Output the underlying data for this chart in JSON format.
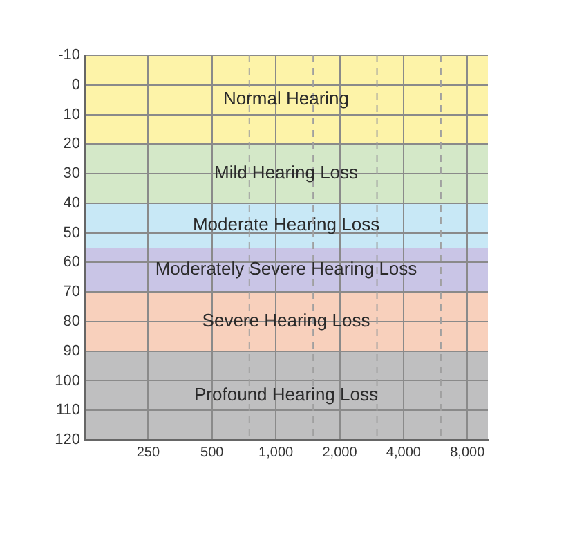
{
  "chart_data": {
    "type": "line",
    "log": "x",
    "grid": true,
    "legend": false,
    "xlim": [
      125,
      10000
    ],
    "xticks": [
      250,
      500,
      {
        "value": 1000,
        "label": "1,000"
      },
      {
        "value": 2000,
        "label": "2,000"
      },
      {
        "value": 4000,
        "label": "4,000"
      },
      {
        "value": 8000,
        "label": "8,000"
      }
    ],
    "ylim": [
      120,
      -10
    ],
    "yticks": [
      -10,
      0,
      10,
      20,
      30,
      40,
      50,
      60,
      70,
      80,
      90,
      100,
      110,
      120
    ],
    "ref_lines": [
      {
        "axis": "x",
        "value": 750,
        "line_style": "dashed",
        "color": "#a0a0a0"
      },
      {
        "axis": "x",
        "value": 1500,
        "line_style": "dashed",
        "color": "#a0a0a0"
      },
      {
        "axis": "x",
        "value": 3000,
        "line_style": "dashed",
        "color": "#a0a0a0"
      },
      {
        "axis": "x",
        "value": 6000,
        "line_style": "dashed",
        "color": "#a0a0a0"
      }
    ],
    "bands": [
      {
        "axis": "y",
        "from": -10,
        "to": 20,
        "label": "Normal Hearing",
        "color": "#fdf3a8"
      },
      {
        "axis": "y",
        "from": 20,
        "to": 40,
        "label": "Mild Hearing Loss",
        "color": "#d4e8c8"
      },
      {
        "axis": "y",
        "from": 40,
        "to": 55,
        "label": "Moderate Hearing Loss",
        "color": "#c8e8f6"
      },
      {
        "axis": "y",
        "from": 55,
        "to": 70,
        "label": "Moderately Severe Hearing Loss",
        "color": "#c9c5e6"
      },
      {
        "axis": "y",
        "from": 70,
        "to": 90,
        "label": "Severe Hearing Loss",
        "color": "#f8d0bc"
      },
      {
        "axis": "y",
        "from": 90,
        "to": 120,
        "label": "Profound Hearing Loss",
        "color": "#bfbfc0"
      }
    ]
  }
}
